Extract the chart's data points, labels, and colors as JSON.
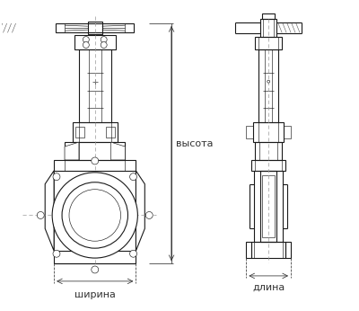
{
  "bg_color": "#ffffff",
  "line_color": "#1a1a1a",
  "dim_color": "#333333",
  "gray_fill": "#c8c8c8",
  "label_ширина": "ширина",
  "label_высота": "высота",
  "label_длина": "длина",
  "fig_width": 4.0,
  "fig_height": 3.46,
  "dpi": 100
}
